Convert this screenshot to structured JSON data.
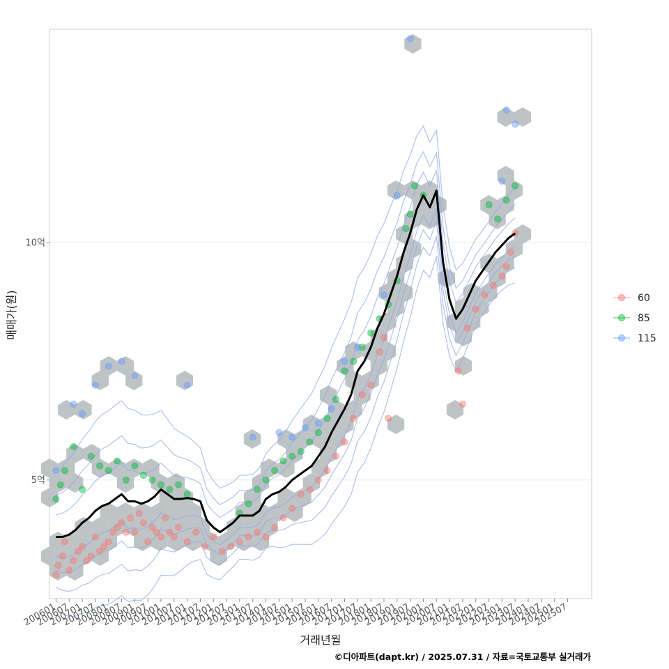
{
  "chart_data": {
    "type": "scatter",
    "xlabel": "거래년월",
    "ylabel": "매매가(원)",
    "caption": "©디아파트(dapt.kr) / 2025.07.31 / 자료=국토교통부 실거래가",
    "x_range": [
      "2005-10",
      "2026-06"
    ],
    "ylim": [
      2.5,
      14.5
    ],
    "y_ticks": [
      {
        "value": 5,
        "label": "5억"
      },
      {
        "value": 10,
        "label": "10억"
      }
    ],
    "x_ticks": [
      "200601",
      "200607",
      "200701",
      "200707",
      "200801",
      "200807",
      "200901",
      "200907",
      "201001",
      "201007",
      "201101",
      "201107",
      "201201",
      "201207",
      "201301",
      "201307",
      "201401",
      "201407",
      "201501",
      "201507",
      "201601",
      "201607",
      "201701",
      "201707",
      "201801",
      "201807",
      "201901",
      "201907",
      "202001",
      "202007",
      "202101",
      "202107",
      "202201",
      "202207",
      "202301",
      "202307",
      "202401",
      "202407",
      "202501",
      "202507"
    ],
    "grid": true,
    "legend": {
      "position": "right",
      "entries": [
        {
          "name": "60",
          "color": "#F8766D"
        },
        {
          "name": "85",
          "color": "#00BA38"
        },
        {
          "name": "115",
          "color": "#619CFF"
        }
      ]
    },
    "colors": {
      "hex": "#b3b8bc",
      "trend": "#000000",
      "contour": "#8fa8e8"
    },
    "trend_line": [
      [
        "2006-01",
        3.8
      ],
      [
        "2006-04",
        3.8
      ],
      [
        "2006-07",
        3.85
      ],
      [
        "2006-10",
        3.95
      ],
      [
        "2007-01",
        4.1
      ],
      [
        "2007-04",
        4.2
      ],
      [
        "2007-07",
        4.35
      ],
      [
        "2007-10",
        4.45
      ],
      [
        "2008-01",
        4.5
      ],
      [
        "2008-04",
        4.6
      ],
      [
        "2008-07",
        4.7
      ],
      [
        "2008-10",
        4.55
      ],
      [
        "2009-01",
        4.55
      ],
      [
        "2009-04",
        4.5
      ],
      [
        "2009-07",
        4.55
      ],
      [
        "2009-10",
        4.65
      ],
      [
        "2010-01",
        4.8
      ],
      [
        "2010-04",
        4.7
      ],
      [
        "2010-07",
        4.6
      ],
      [
        "2010-10",
        4.6
      ],
      [
        "2011-01",
        4.62
      ],
      [
        "2011-04",
        4.6
      ],
      [
        "2011-07",
        4.55
      ],
      [
        "2011-10",
        4.15
      ],
      [
        "2012-01",
        4.0
      ],
      [
        "2012-04",
        3.9
      ],
      [
        "2012-07",
        4.0
      ],
      [
        "2012-10",
        4.1
      ],
      [
        "2013-01",
        4.25
      ],
      [
        "2013-04",
        4.25
      ],
      [
        "2013-07",
        4.25
      ],
      [
        "2013-10",
        4.35
      ],
      [
        "2014-01",
        4.6
      ],
      [
        "2014-04",
        4.7
      ],
      [
        "2014-07",
        4.75
      ],
      [
        "2014-10",
        4.85
      ],
      [
        "2015-01",
        5.0
      ],
      [
        "2015-04",
        5.1
      ],
      [
        "2015-07",
        5.2
      ],
      [
        "2015-10",
        5.3
      ],
      [
        "2016-01",
        5.5
      ],
      [
        "2016-04",
        5.7
      ],
      [
        "2016-07",
        6.0
      ],
      [
        "2016-10",
        6.25
      ],
      [
        "2017-01",
        6.5
      ],
      [
        "2017-04",
        6.8
      ],
      [
        "2017-07",
        7.3
      ],
      [
        "2017-10",
        7.5
      ],
      [
        "2018-01",
        7.8
      ],
      [
        "2018-04",
        8.2
      ],
      [
        "2018-07",
        8.5
      ],
      [
        "2018-10",
        8.9
      ],
      [
        "2019-01",
        9.3
      ],
      [
        "2019-04",
        9.8
      ],
      [
        "2019-07",
        10.2
      ],
      [
        "2019-10",
        10.7
      ],
      [
        "2020-01",
        11.0
      ],
      [
        "2020-04",
        10.75
      ],
      [
        "2020-07",
        11.1
      ],
      [
        "2020-10",
        9.6
      ],
      [
        "2021-01",
        8.8
      ],
      [
        "2021-04",
        8.4
      ],
      [
        "2021-07",
        8.6
      ],
      [
        "2021-10",
        8.9
      ],
      [
        "2022-01",
        9.2
      ],
      [
        "2022-04",
        9.4
      ],
      [
        "2022-07",
        9.6
      ],
      [
        "2022-10",
        9.8
      ],
      [
        "2023-01",
        9.95
      ],
      [
        "2023-04",
        10.1
      ],
      [
        "2023-07",
        10.2
      ]
    ],
    "series": [
      {
        "name": "60",
        "points": [
          [
            "2006-01",
            3.0
          ],
          [
            "2006-02",
            3.2
          ],
          [
            "2006-04",
            3.4
          ],
          [
            "2006-05",
            3.7
          ],
          [
            "2006-07",
            3.1
          ],
          [
            "2006-09",
            3.3
          ],
          [
            "2006-11",
            3.5
          ],
          [
            "2007-01",
            3.6
          ],
          [
            "2007-03",
            3.3
          ],
          [
            "2007-05",
            3.4
          ],
          [
            "2007-07",
            3.8
          ],
          [
            "2007-09",
            3.5
          ],
          [
            "2007-11",
            3.6
          ],
          [
            "2008-01",
            3.7
          ],
          [
            "2008-03",
            3.9
          ],
          [
            "2008-05",
            4.0
          ],
          [
            "2008-07",
            4.1
          ],
          [
            "2008-09",
            3.9
          ],
          [
            "2008-11",
            4.2
          ],
          [
            "2009-01",
            3.9
          ],
          [
            "2009-03",
            4.3
          ],
          [
            "2009-05",
            4.1
          ],
          [
            "2009-07",
            3.7
          ],
          [
            "2009-09",
            4.0
          ],
          [
            "2009-11",
            3.9
          ],
          [
            "2010-01",
            3.8
          ],
          [
            "2010-03",
            4.2
          ],
          [
            "2010-05",
            3.9
          ],
          [
            "2010-07",
            3.8
          ],
          [
            "2010-09",
            4.0
          ],
          [
            "2011-01",
            3.7
          ],
          [
            "2011-05",
            3.9
          ],
          [
            "2011-09",
            3.6
          ],
          [
            "2012-01",
            3.8
          ],
          [
            "2012-05",
            3.5
          ],
          [
            "2012-09",
            3.6
          ],
          [
            "2013-01",
            3.7
          ],
          [
            "2013-05",
            3.8
          ],
          [
            "2013-09",
            3.9
          ],
          [
            "2014-01",
            3.8
          ],
          [
            "2014-05",
            4.0
          ],
          [
            "2014-09",
            4.2
          ],
          [
            "2015-01",
            4.4
          ],
          [
            "2015-05",
            4.7
          ],
          [
            "2015-09",
            4.8
          ],
          [
            "2016-01",
            5.0
          ],
          [
            "2016-05",
            5.2
          ],
          [
            "2016-09",
            5.5
          ],
          [
            "2017-01",
            5.8
          ],
          [
            "2017-05",
            6.3
          ],
          [
            "2017-09",
            6.8
          ],
          [
            "2018-01",
            7.0
          ],
          [
            "2018-05",
            7.7
          ],
          [
            "2018-07",
            8.0
          ],
          [
            "2018-09",
            6.3
          ],
          [
            "2021-05",
            7.3
          ],
          [
            "2021-07",
            6.6
          ],
          [
            "2021-09",
            8.2
          ],
          [
            "2022-01",
            8.6
          ],
          [
            "2022-05",
            8.9
          ],
          [
            "2022-09",
            9.1
          ],
          [
            "2023-01",
            9.3
          ],
          [
            "2023-03",
            9.5
          ],
          [
            "2023-05",
            9.8
          ],
          [
            "2023-07",
            10.2
          ]
        ]
      },
      {
        "name": "85",
        "points": [
          [
            "2006-01",
            4.6
          ],
          [
            "2006-03",
            4.9
          ],
          [
            "2006-05",
            5.2
          ],
          [
            "2006-09",
            5.7
          ],
          [
            "2007-01",
            4.8
          ],
          [
            "2007-05",
            5.5
          ],
          [
            "2007-09",
            5.3
          ],
          [
            "2008-01",
            5.2
          ],
          [
            "2008-05",
            5.4
          ],
          [
            "2008-09",
            5.0
          ],
          [
            "2009-01",
            5.3
          ],
          [
            "2009-05",
            5.1
          ],
          [
            "2009-09",
            5.0
          ],
          [
            "2010-01",
            4.9
          ],
          [
            "2010-05",
            4.8
          ],
          [
            "2010-09",
            4.9
          ],
          [
            "2011-01",
            4.7
          ],
          [
            "2013-01",
            4.3
          ],
          [
            "2013-05",
            4.5
          ],
          [
            "2013-09",
            4.8
          ],
          [
            "2014-01",
            5.0
          ],
          [
            "2014-05",
            5.2
          ],
          [
            "2014-09",
            5.4
          ],
          [
            "2015-01",
            5.5
          ],
          [
            "2015-05",
            5.6
          ],
          [
            "2015-09",
            5.8
          ],
          [
            "2016-01",
            6.0
          ],
          [
            "2016-05",
            6.3
          ],
          [
            "2016-09",
            6.7
          ],
          [
            "2017-01",
            7.3
          ],
          [
            "2017-05",
            7.5
          ],
          [
            "2017-09",
            7.8
          ],
          [
            "2018-01",
            8.1
          ],
          [
            "2018-05",
            8.4
          ],
          [
            "2018-09",
            8.7
          ],
          [
            "2019-01",
            9.2
          ],
          [
            "2019-05",
            10.3
          ],
          [
            "2019-07",
            10.6
          ],
          [
            "2019-09",
            11.2
          ],
          [
            "2020-01",
            11.0
          ],
          [
            "2022-07",
            10.8
          ],
          [
            "2022-11",
            10.5
          ],
          [
            "2023-03",
            10.9
          ],
          [
            "2023-07",
            11.2
          ]
        ]
      },
      {
        "name": "115",
        "points": [
          [
            "2006-01",
            5.2
          ],
          [
            "2006-09",
            6.6
          ],
          [
            "2007-01",
            6.4
          ],
          [
            "2007-07",
            7.0
          ],
          [
            "2008-01",
            7.4
          ],
          [
            "2008-07",
            7.5
          ],
          [
            "2009-01",
            7.2
          ],
          [
            "2011-01",
            7.0
          ],
          [
            "2013-07",
            5.9
          ],
          [
            "2014-07",
            6.0
          ],
          [
            "2015-01",
            5.9
          ],
          [
            "2015-07",
            6.1
          ],
          [
            "2016-01",
            6.2
          ],
          [
            "2016-07",
            6.5
          ],
          [
            "2017-01",
            7.5
          ],
          [
            "2017-07",
            7.8
          ],
          [
            "2018-07",
            8.9
          ],
          [
            "2019-07",
            14.3
          ],
          [
            "2019-01",
            11.0
          ],
          [
            "2023-01",
            11.3
          ],
          [
            "2023-03",
            12.8
          ],
          [
            "2023-07",
            12.5
          ]
        ]
      }
    ]
  }
}
